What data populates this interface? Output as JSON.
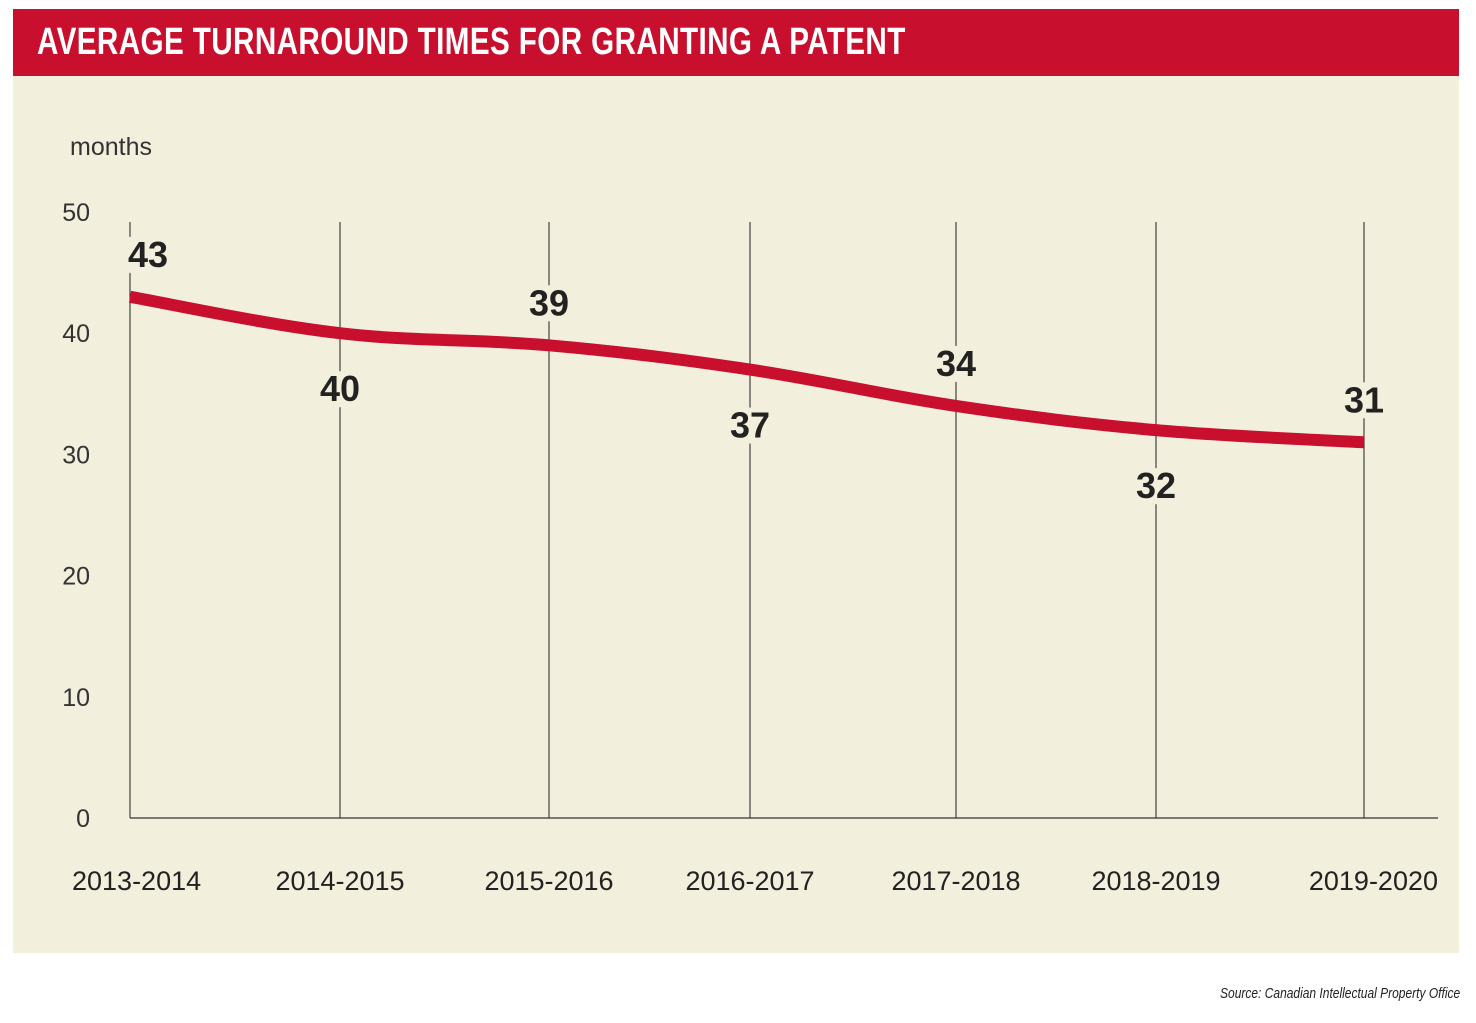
{
  "chart_data": {
    "type": "line",
    "title": "AVERAGE TURNAROUND TIMES FOR GRANTING A PATENT",
    "ylabel": "months",
    "categories": [
      "2013-2014",
      "2014-2015",
      "2015-2016",
      "2016-2017",
      "2017-2018",
      "2018-2019",
      "2019-2020"
    ],
    "values": [
      43,
      40,
      39,
      37,
      34,
      32,
      31
    ],
    "ylim": [
      0,
      50
    ],
    "yticks": [
      0,
      10,
      20,
      30,
      40,
      50
    ],
    "label_position": [
      "above",
      "below",
      "above",
      "below",
      "above",
      "below",
      "above"
    ],
    "line_color": "#c8102e",
    "grid": "vertical lines at each category",
    "source": "Source: Canadian Intellectual Property Office"
  }
}
